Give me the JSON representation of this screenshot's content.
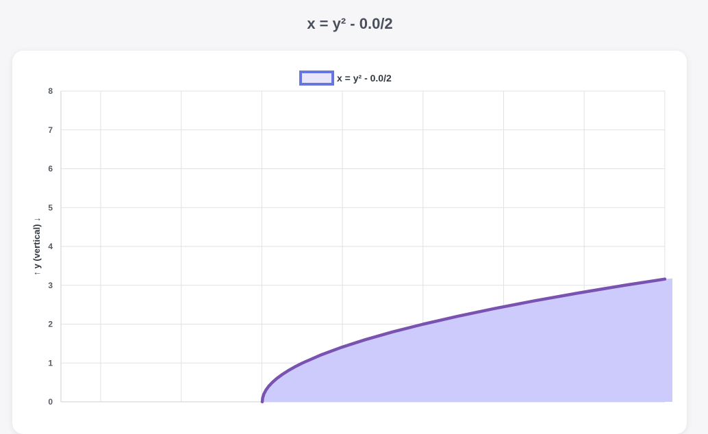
{
  "page": {
    "title": "x = y² - 0.0/2"
  },
  "chart_data": {
    "type": "area",
    "title": "x = y² - 0.0/2",
    "ylabel": "↑ y (vertical) ↓",
    "xlabel": "",
    "ylim": [
      0,
      8
    ],
    "xlim": [
      -5,
      10
    ],
    "y_ticks": [
      "0",
      "1",
      "2",
      "3",
      "4",
      "5",
      "6",
      "7",
      "8"
    ],
    "grid": true,
    "legend_position": "top-center",
    "series": [
      {
        "name": "x = y² - 0.0/2",
        "line_color": "#7a52b0",
        "fill_color": "#cccbfc",
        "legend_border_color": "#6675e0",
        "x": [
          0,
          0.01,
          0.04,
          0.09,
          0.16,
          0.25,
          0.36,
          0.49,
          0.64,
          0.81,
          1,
          1.44,
          1.96,
          2.56,
          3.24,
          4,
          4.84,
          5.76,
          6.76,
          7.84,
          9,
          10
        ],
        "y": [
          0,
          0.1,
          0.2,
          0.3,
          0.4,
          0.5,
          0.6,
          0.7,
          0.8,
          0.9,
          1,
          1.2,
          1.4,
          1.6,
          1.8,
          2,
          2.2,
          2.4,
          2.6,
          2.8,
          3,
          3.16
        ]
      }
    ]
  }
}
